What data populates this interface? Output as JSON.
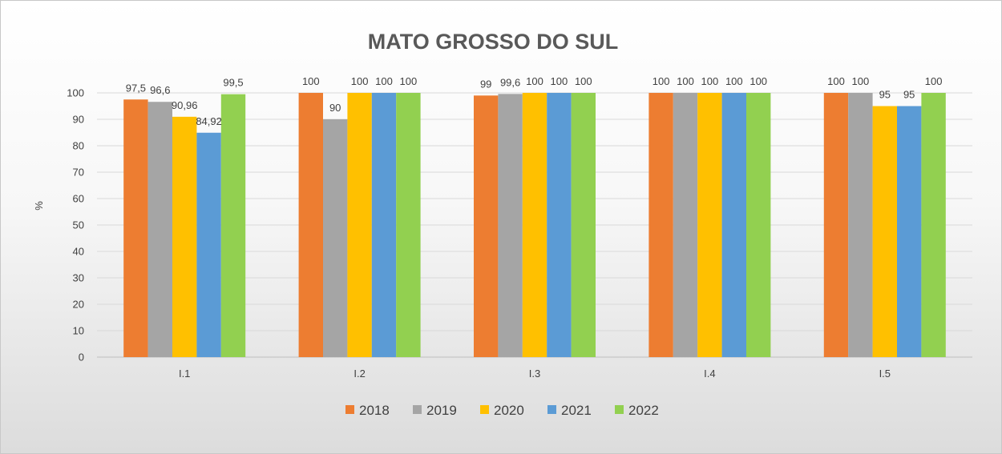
{
  "chart_data": {
    "type": "bar",
    "title": "MATO GROSSO DO SUL",
    "xlabel": "",
    "ylabel": "%",
    "ylim": [
      0,
      100
    ],
    "yticks": [
      0,
      10,
      20,
      30,
      40,
      50,
      60,
      70,
      80,
      90,
      100
    ],
    "grid": true,
    "legend_position": "bottom",
    "categories": [
      "I.1",
      "I.2",
      "I.3",
      "I.4",
      "I.5"
    ],
    "series": [
      {
        "name": "2018",
        "color": "#ED7D31",
        "values": [
          97.5,
          100,
          99,
          100,
          100
        ],
        "labels": [
          "97,5",
          "100",
          "99",
          "100",
          "100"
        ]
      },
      {
        "name": "2019",
        "color": "#A5A5A5",
        "values": [
          96.6,
          90,
          99.6,
          100,
          100
        ],
        "labels": [
          "96,6",
          "90",
          "99,6",
          "100",
          "100"
        ]
      },
      {
        "name": "2020",
        "color": "#FFC000",
        "values": [
          90.96,
          100,
          100,
          100,
          95
        ],
        "labels": [
          "90,96",
          "100",
          "100",
          "100",
          "95"
        ]
      },
      {
        "name": "2021",
        "color": "#5B9BD5",
        "values": [
          84.92,
          100,
          100,
          100,
          95
        ],
        "labels": [
          "84,92",
          "100",
          "100",
          "100",
          "95"
        ]
      },
      {
        "name": "2022",
        "color": "#92D050",
        "values": [
          99.5,
          100,
          100,
          100,
          100
        ],
        "labels": [
          "99,5",
          "100",
          "100",
          "100",
          "100"
        ]
      }
    ]
  }
}
